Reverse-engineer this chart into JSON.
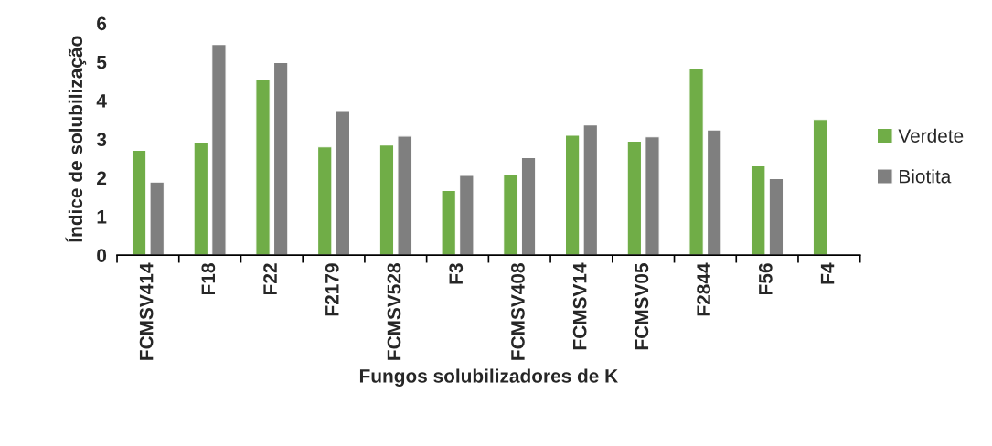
{
  "chart_data": {
    "type": "bar",
    "xlabel": "Fungos solubilizadores de K",
    "ylabel": "Índice de solubilização",
    "categories": [
      "FCMSV414",
      "F18",
      "F22",
      "F2179",
      "FCMSV528",
      "F3",
      "FCMSV408",
      "FCMSV14",
      "FCMSV05",
      "F2844",
      "F56",
      "F4"
    ],
    "series": [
      {
        "name": "Verdete",
        "color": "#70ad47",
        "values": [
          2.71,
          2.9,
          4.53,
          2.8,
          2.85,
          1.67,
          2.08,
          3.1,
          2.95,
          4.82,
          2.31,
          3.51
        ]
      },
      {
        "name": "Biotita",
        "color": "#7f7f7f",
        "values": [
          1.89,
          5.45,
          4.98,
          3.74,
          3.08,
          2.06,
          2.52,
          3.37,
          3.06,
          3.24,
          1.98,
          null
        ]
      }
    ],
    "ylim": [
      0,
      6
    ],
    "yticks": [
      0,
      1,
      2,
      3,
      4,
      5,
      6
    ],
    "grid": false,
    "legend": "right"
  }
}
